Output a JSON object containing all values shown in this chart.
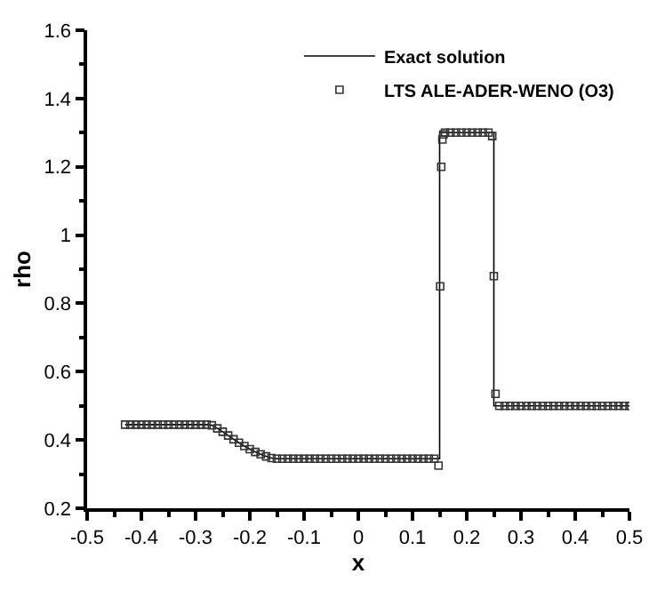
{
  "chart_data": {
    "type": "line",
    "xlabel": "x",
    "ylabel": "rho",
    "xlim": [
      -0.5,
      0.5
    ],
    "xticks": [
      -0.5,
      -0.4,
      -0.3,
      -0.2,
      -0.1,
      0,
      0.1,
      0.2,
      0.3,
      0.4,
      0.5
    ],
    "ylim": [
      0.2,
      1.6
    ],
    "yticks": [
      0.2,
      0.4,
      0.6,
      0.8,
      1,
      1.2,
      1.4,
      1.6
    ],
    "legend": "top right",
    "series": [
      {
        "name": "Exact solution",
        "color": "#000000",
        "marker": "none",
        "line_style": "solid",
        "x": [
          -0.43,
          -0.28,
          -0.27,
          -0.26,
          -0.25,
          -0.24,
          -0.23,
          -0.22,
          -0.21,
          -0.2,
          -0.19,
          -0.18,
          -0.17,
          -0.16,
          -0.15,
          0.15,
          0.15,
          0.25,
          0.25,
          0.5
        ],
        "values": [
          0.445,
          0.445,
          0.443,
          0.434,
          0.424,
          0.413,
          0.402,
          0.392,
          0.382,
          0.373,
          0.365,
          0.358,
          0.352,
          0.347,
          0.345,
          0.345,
          1.3,
          1.3,
          0.5,
          0.5
        ]
      },
      {
        "name": "LTS ALE-ADER-WENO (O3)",
        "type": "scatter",
        "color": "#333333",
        "marker": "square",
        "x": [
          -0.43,
          -0.42,
          -0.41,
          -0.4,
          -0.39,
          -0.38,
          -0.37,
          -0.36,
          -0.35,
          -0.34,
          -0.33,
          -0.32,
          -0.31,
          -0.3,
          -0.29,
          -0.28,
          -0.27,
          -0.26,
          -0.25,
          -0.24,
          -0.23,
          -0.22,
          -0.21,
          -0.2,
          -0.19,
          -0.18,
          -0.17,
          -0.16,
          -0.15,
          -0.14,
          -0.13,
          -0.12,
          -0.11,
          -0.1,
          -0.09,
          -0.08,
          -0.07,
          -0.06,
          -0.05,
          -0.04,
          -0.03,
          -0.02,
          -0.01,
          0,
          0.01,
          0.02,
          0.03,
          0.04,
          0.05,
          0.06,
          0.07,
          0.08,
          0.09,
          0.1,
          0.11,
          0.12,
          0.13,
          0.14,
          0.148,
          0.151,
          0.153,
          0.155,
          0.157,
          0.16,
          0.17,
          0.18,
          0.19,
          0.2,
          0.21,
          0.22,
          0.23,
          0.24,
          0.247,
          0.25,
          0.253,
          0.26,
          0.27,
          0.28,
          0.29,
          0.3,
          0.31,
          0.32,
          0.33,
          0.34,
          0.35,
          0.36,
          0.37,
          0.38,
          0.39,
          0.4,
          0.41,
          0.42,
          0.43,
          0.44,
          0.45,
          0.46,
          0.47,
          0.48,
          0.49,
          0.5
        ],
        "values": [
          0.445,
          0.445,
          0.445,
          0.445,
          0.445,
          0.445,
          0.445,
          0.445,
          0.445,
          0.445,
          0.445,
          0.445,
          0.445,
          0.445,
          0.445,
          0.445,
          0.443,
          0.434,
          0.424,
          0.413,
          0.402,
          0.392,
          0.382,
          0.373,
          0.365,
          0.358,
          0.352,
          0.347,
          0.345,
          0.345,
          0.345,
          0.345,
          0.345,
          0.345,
          0.345,
          0.345,
          0.345,
          0.345,
          0.345,
          0.345,
          0.345,
          0.345,
          0.345,
          0.345,
          0.345,
          0.345,
          0.345,
          0.345,
          0.345,
          0.345,
          0.345,
          0.345,
          0.345,
          0.345,
          0.345,
          0.345,
          0.345,
          0.345,
          0.325,
          0.85,
          1.2,
          1.28,
          1.295,
          1.3,
          1.3,
          1.3,
          1.3,
          1.3,
          1.3,
          1.3,
          1.3,
          1.3,
          1.29,
          0.88,
          0.535,
          0.5,
          0.5,
          0.5,
          0.5,
          0.5,
          0.5,
          0.5,
          0.5,
          0.5,
          0.5,
          0.5,
          0.5,
          0.5,
          0.5,
          0.5,
          0.5,
          0.5,
          0.5,
          0.5,
          0.5,
          0.5,
          0.5,
          0.5,
          0.5,
          0.5
        ]
      }
    ]
  }
}
